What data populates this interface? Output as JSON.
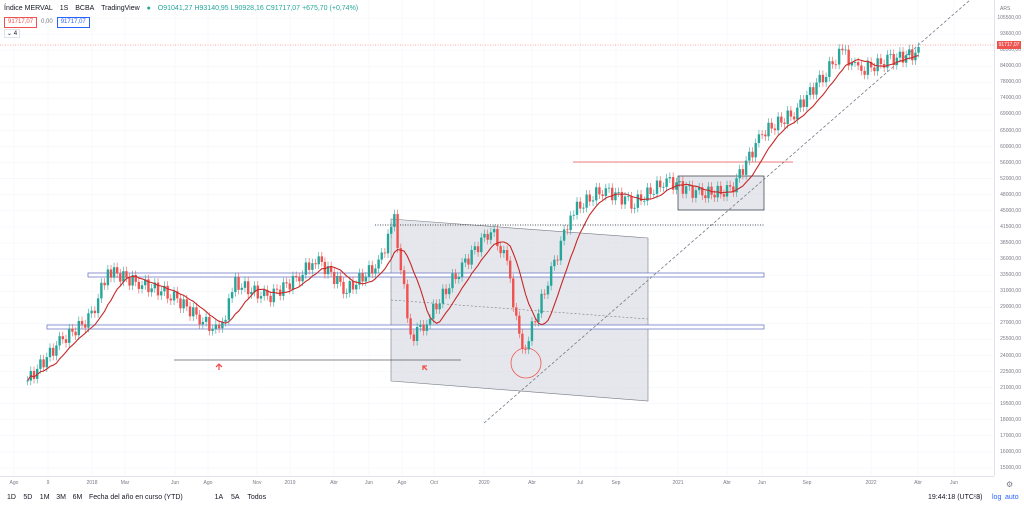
{
  "header": {
    "title": "Índice MERVAL",
    "interval": "1S",
    "exchange": "BCBA",
    "source": "TradingView",
    "ohlc": [
      "O91041,27",
      "H93140,95",
      "L90928,16",
      "C91717,07",
      "+675,70 (+0,74%)"
    ],
    "price_red": "91717,07",
    "price_mid": "0,00",
    "price_blue": "91717,07",
    "collapse_label": "4"
  },
  "price_axis": {
    "currency": "ARS",
    "current_price": "91717,07",
    "labels": [
      "105500,00",
      "93600,00",
      "88500,00",
      "84000,00",
      "78000,00",
      "74000,00",
      "69000,00",
      "65000,00",
      "60000,00",
      "56000,00",
      "52000,00",
      "48000,00",
      "45000,00",
      "41500,00",
      "38500,00",
      "36000,00",
      "33500,00",
      "31000,00",
      "29000,00",
      "27000,00",
      "25500,00",
      "24000,00",
      "22500,00",
      "21000,00",
      "19500,00",
      "18000,00",
      "17000,00",
      "16000,00",
      "15000,00"
    ],
    "settings_icon": "gear-icon"
  },
  "time_axis": {
    "labels": [
      "Ago",
      "9",
      "2018",
      "Mar",
      "Jun",
      "Ago",
      "Nov",
      "2019",
      "Abr",
      "Jun",
      "Ago",
      "Oct",
      "2020",
      "Abr",
      "Jul",
      "Sep",
      "2021",
      "Abr",
      "Jun",
      "Sep",
      "2022",
      "Abr",
      "Jun"
    ]
  },
  "bottom_bar": {
    "timeframes": [
      "1D",
      "5D",
      "1M",
      "3M",
      "6M",
      "Fecha del año en curso (YTD)",
      "1A",
      "5A",
      "Todos"
    ],
    "clock": "19:44:18 (UTC-3)",
    "percent": "%",
    "log": "log",
    "auto": "auto"
  },
  "chart_data": {
    "type": "candlestick",
    "symbol": "Índice MERVAL",
    "interval": "1S",
    "scale": "log",
    "last_close": 91717.07,
    "close_series_approx": [
      {
        "x": "2017-08",
        "y": 21500
      },
      {
        "x": "2017-10",
        "y": 25500
      },
      {
        "x": "2017-12",
        "y": 28500
      },
      {
        "x": "2018-01",
        "y": 35000
      },
      {
        "x": "2018-03",
        "y": 33000
      },
      {
        "x": "2018-05",
        "y": 31500
      },
      {
        "x": "2018-07",
        "y": 28000
      },
      {
        "x": "2018-08",
        "y": 26500
      },
      {
        "x": "2018-09",
        "y": 33000
      },
      {
        "x": "2018-11",
        "y": 31000
      },
      {
        "x": "2019-01",
        "y": 34000
      },
      {
        "x": "2019-02",
        "y": 37000
      },
      {
        "x": "2019-04",
        "y": 32000
      },
      {
        "x": "2019-06",
        "y": 36000
      },
      {
        "x": "2019-07",
        "y": 43500
      },
      {
        "x": "2019-08",
        "y": 26000
      },
      {
        "x": "2019-09",
        "y": 28000
      },
      {
        "x": "2019-11",
        "y": 35000
      },
      {
        "x": "2020-01",
        "y": 42000
      },
      {
        "x": "2020-02",
        "y": 36000
      },
      {
        "x": "2020-03",
        "y": 24000
      },
      {
        "x": "2020-05",
        "y": 36000
      },
      {
        "x": "2020-06",
        "y": 45000
      },
      {
        "x": "2020-08",
        "y": 50000
      },
      {
        "x": "2020-10",
        "y": 47000
      },
      {
        "x": "2020-12",
        "y": 52000
      },
      {
        "x": "2021-02",
        "y": 49000
      },
      {
        "x": "2021-04",
        "y": 49500
      },
      {
        "x": "2021-06",
        "y": 64000
      },
      {
        "x": "2021-08",
        "y": 70000
      },
      {
        "x": "2021-10",
        "y": 84000
      },
      {
        "x": "2021-11",
        "y": 92000
      },
      {
        "x": "2021-12",
        "y": 84000
      },
      {
        "x": "2022-02",
        "y": 88500
      },
      {
        "x": "2022-04",
        "y": 91717.07
      }
    ]
  }
}
